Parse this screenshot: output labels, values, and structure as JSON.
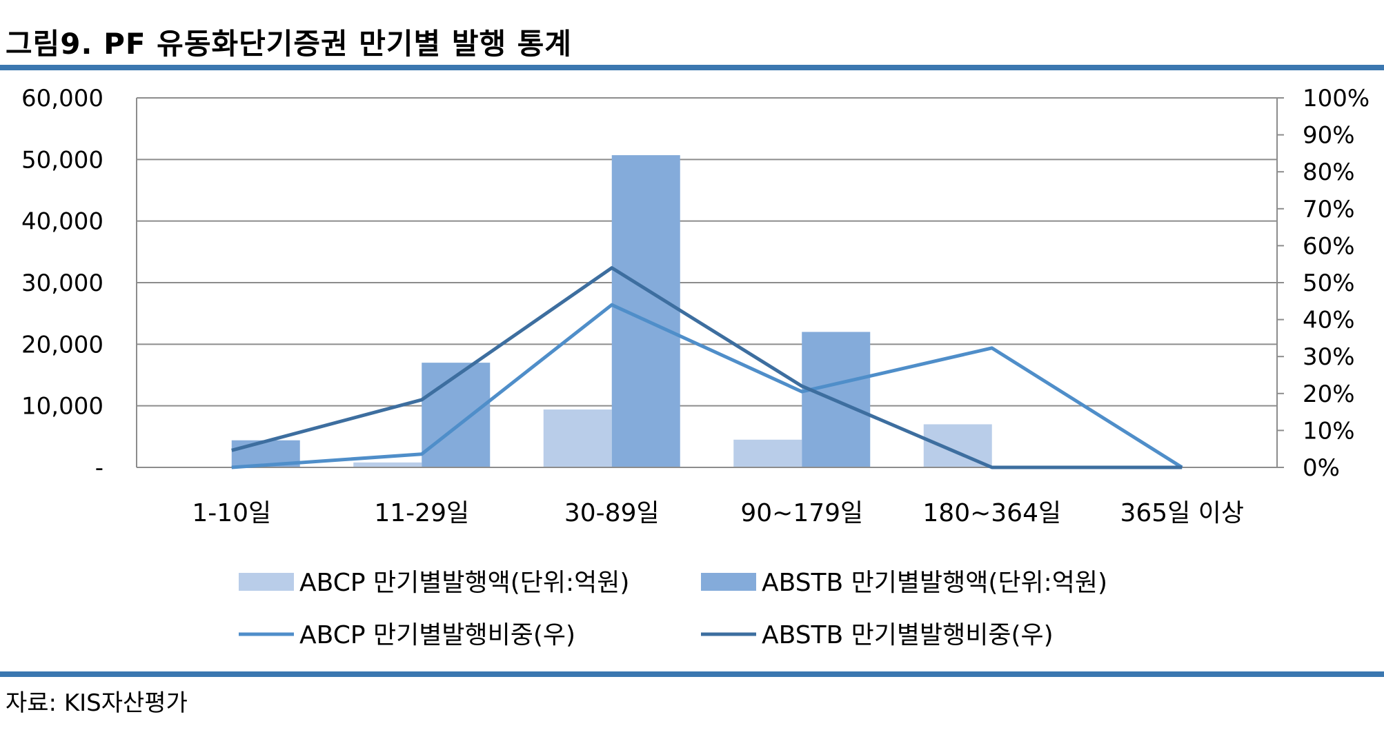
{
  "header": {
    "title": "그림9. PF 유동화단기증권 만기별 발행 통계"
  },
  "footer": {
    "source": "자료: KIS자산평가"
  },
  "chart_data": {
    "type": "bar+line",
    "categories": [
      "1-10일",
      "11-29일",
      "30-89일",
      "90~179일",
      "180~364일",
      "365일 이상"
    ],
    "y_left": {
      "min": 0,
      "max": 60000,
      "ticks": [
        "-",
        "10,000",
        "20,000",
        "30,000",
        "40,000",
        "50,000",
        "60,000"
      ]
    },
    "y_right": {
      "min": 0,
      "max": 100,
      "ticks": [
        "0%",
        "10%",
        "20%",
        "30%",
        "40%",
        "50%",
        "60%",
        "70%",
        "80%",
        "90%",
        "100%"
      ]
    },
    "grid": true,
    "legend_position": "bottom",
    "bar_series": [
      {
        "name": "ABCP 만기별발행액(단위:억원)",
        "color": "#b9cde9",
        "values": [
          0,
          800,
          9400,
          4500,
          7000,
          0
        ]
      },
      {
        "name": "ABSTB 만기별발행액(단위:억원)",
        "color": "#84abda",
        "values": [
          4400,
          17000,
          50700,
          22000,
          0,
          0
        ]
      }
    ],
    "line_series": [
      {
        "name": "ABCP 만기별발행비중(우)",
        "color": "#4f8ec9",
        "values": [
          0,
          3.6,
          44,
          20.5,
          32.3,
          0
        ]
      },
      {
        "name": "ABSTB 만기별발행비중(우)",
        "color": "#3d6e9f",
        "values": [
          4.6,
          18.3,
          54,
          22,
          0,
          0
        ]
      }
    ]
  }
}
